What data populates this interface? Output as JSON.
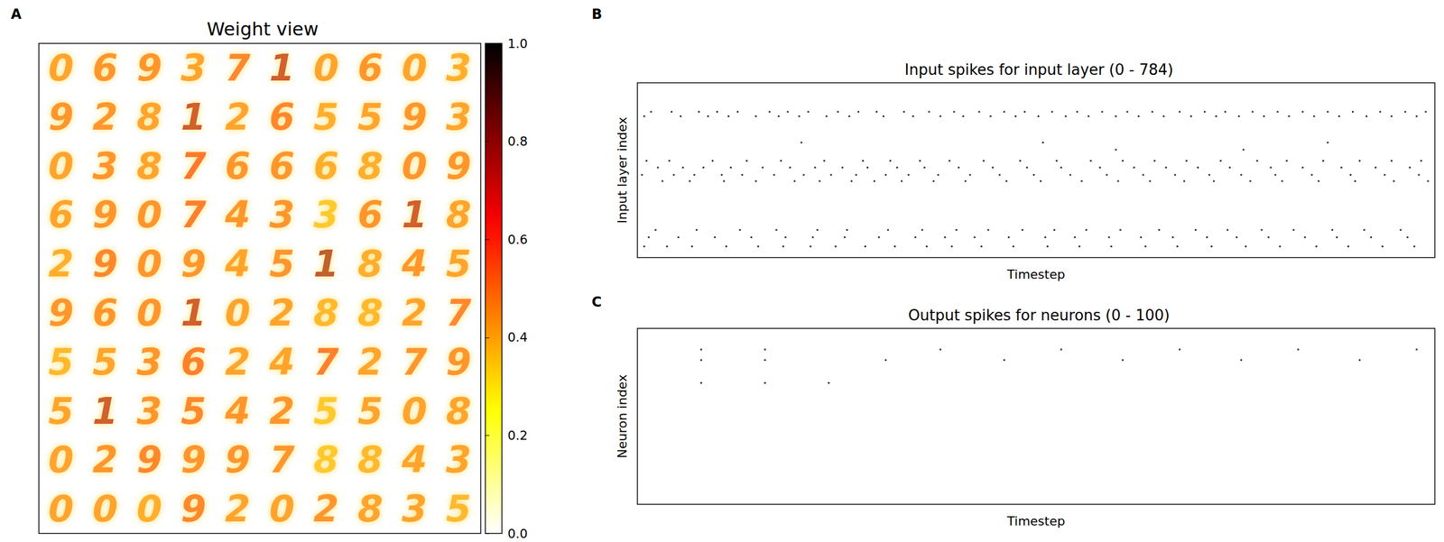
{
  "chart_data": [
    {
      "panel": "A",
      "type": "image_grid",
      "title": "Weight view",
      "tick_labels": false,
      "digits": [
        [
          "0",
          "6",
          "9",
          "3",
          "7",
          "1",
          "0",
          "6",
          "0",
          "3"
        ],
        [
          "9",
          "2",
          "8",
          "1",
          "2",
          "6",
          "5",
          "5",
          "9",
          "3"
        ],
        [
          "0",
          "3",
          "8",
          "7",
          "6",
          "6",
          "6",
          "8",
          "0",
          "9"
        ],
        [
          "6",
          "9",
          "0",
          "7",
          "4",
          "3",
          "3",
          "6",
          "1",
          "8"
        ],
        [
          "2",
          "9",
          "0",
          "9",
          "4",
          "5",
          "1",
          "8",
          "4",
          "5"
        ],
        [
          "9",
          "6",
          "0",
          "1",
          "0",
          "2",
          "8",
          "8",
          "2",
          "7"
        ],
        [
          "5",
          "5",
          "3",
          "6",
          "2",
          "4",
          "7",
          "2",
          "7",
          "9"
        ],
        [
          "5",
          "1",
          "3",
          "5",
          "4",
          "2",
          "5",
          "5",
          "0",
          "8"
        ],
        [
          "0",
          "2",
          "9",
          "9",
          "9",
          "7",
          "8",
          "8",
          "4",
          "3"
        ],
        [
          "0",
          "0",
          "0",
          "9",
          "2",
          "0",
          "2",
          "8",
          "3",
          "5"
        ]
      ],
      "intensity": [
        [
          0.42,
          0.45,
          0.45,
          0.42,
          0.48,
          0.72,
          0.42,
          0.45,
          0.42,
          0.4
        ],
        [
          0.45,
          0.45,
          0.42,
          0.72,
          0.42,
          0.48,
          0.4,
          0.42,
          0.45,
          0.42
        ],
        [
          0.42,
          0.45,
          0.42,
          0.52,
          0.45,
          0.45,
          0.4,
          0.4,
          0.45,
          0.45
        ],
        [
          0.42,
          0.45,
          0.45,
          0.5,
          0.45,
          0.45,
          0.35,
          0.45,
          0.72,
          0.42
        ],
        [
          0.4,
          0.48,
          0.45,
          0.45,
          0.42,
          0.45,
          0.75,
          0.4,
          0.45,
          0.42
        ],
        [
          0.45,
          0.45,
          0.45,
          0.72,
          0.42,
          0.42,
          0.38,
          0.38,
          0.42,
          0.48
        ],
        [
          0.38,
          0.42,
          0.45,
          0.5,
          0.42,
          0.42,
          0.5,
          0.42,
          0.45,
          0.45
        ],
        [
          0.42,
          0.72,
          0.45,
          0.48,
          0.45,
          0.45,
          0.35,
          0.42,
          0.42,
          0.42
        ],
        [
          0.42,
          0.45,
          0.48,
          0.45,
          0.45,
          0.45,
          0.35,
          0.38,
          0.42,
          0.42
        ],
        [
          0.42,
          0.42,
          0.4,
          0.48,
          0.42,
          0.42,
          0.45,
          0.42,
          0.42,
          0.38
        ]
      ],
      "colorbar": {
        "range": [
          0,
          1
        ],
        "ticks": [
          {
            "value": 0,
            "label": "0.0"
          },
          {
            "value": 0.2,
            "label": "0.2"
          },
          {
            "value": 0.4,
            "label": "0.4"
          },
          {
            "value": 0.6,
            "label": "0.6"
          },
          {
            "value": 0.8,
            "label": "0.8"
          },
          {
            "value": 1,
            "label": "1.0"
          }
        ]
      }
    },
    {
      "panel": "B",
      "type": "scatter",
      "title": "Input spikes for input layer (0 - 784)",
      "x_label": "Timestep",
      "y_label": "Input layer index",
      "xlim": [
        0,
        350
      ],
      "ylim": [
        784,
        0
      ],
      "tick_labels": false,
      "marker": "square",
      "color": "#000000",
      "spikes": [
        {
          "index": 130,
          "times": [
            6,
            15,
            27,
            35,
            44,
            58,
            66,
            75,
            88,
            97,
            105,
            117,
            128,
            139,
            150,
            161,
            170,
            182,
            193,
            204,
            215,
            226,
            238,
            249,
            258,
            270,
            281,
            292,
            303,
            314,
            326,
            337,
            346
          ]
        },
        {
          "index": 150,
          "times": [
            3,
            19,
            31,
            40,
            52,
            62,
            71,
            83,
            93,
            108,
            121,
            133,
            143,
            155,
            166,
            176,
            188,
            198,
            210,
            220,
            231,
            243,
            254,
            264,
            275,
            286,
            297,
            308,
            320,
            331,
            342
          ]
        },
        {
          "index": 268,
          "times": [
            72,
            178,
            303
          ]
        },
        {
          "index": 300,
          "times": [
            210,
            266
          ]
        },
        {
          "index": 350,
          "times": [
            4,
            14,
            33,
            48,
            63,
            82,
            99,
            111,
            124,
            137,
            152,
            168,
            184,
            199,
            213,
            227,
            241,
            256,
            272,
            285,
            301,
            317,
            331,
            344
          ]
        },
        {
          "index": 380,
          "times": [
            9,
            20,
            29,
            41,
            55,
            67,
            78,
            90,
            101,
            114,
            126,
            141,
            156,
            171,
            186,
            203,
            218,
            232,
            246,
            260,
            278,
            292,
            309,
            324,
            339
          ]
        },
        {
          "index": 413,
          "times": [
            2,
            16,
            25,
            37,
            46,
            60,
            73,
            85,
            96,
            109,
            119,
            132,
            146,
            159,
            174,
            190,
            206,
            222,
            236,
            251,
            265,
            280,
            296,
            313,
            328,
            343
          ]
        },
        {
          "index": 441,
          "times": [
            11,
            23,
            38,
            52,
            69,
            80,
            94,
            104,
            116,
            130,
            144,
            162,
            177,
            195,
            211,
            225,
            240,
            253,
            269,
            283,
            299,
            315,
            332,
            347
          ]
        },
        {
          "index": 660,
          "times": [
            8,
            26,
            45,
            61,
            79,
            92,
            110,
            125,
            140,
            154,
            169,
            183,
            197,
            212,
            229,
            245,
            259,
            274,
            288,
            305,
            319,
            335
          ]
        },
        {
          "index": 693,
          "times": [
            5,
            18,
            34,
            50,
            65,
            77,
            91,
            106,
            122,
            135,
            148,
            163,
            179,
            192,
            207,
            221,
            235,
            250,
            263,
            277,
            293,
            307,
            322,
            338
          ]
        },
        {
          "index": 734,
          "times": [
            3,
            13,
            24,
            39,
            53,
            64,
            76,
            87,
            100,
            113,
            127,
            138,
            151,
            165,
            180,
            194,
            208,
            223,
            237,
            252,
            267,
            282,
            298,
            312,
            327,
            341
          ]
        }
      ]
    },
    {
      "panel": "C",
      "type": "scatter",
      "title": "Output spikes for neurons (0 - 100)",
      "x_label": "Timestep",
      "y_label": "Neuron index",
      "xlim": [
        0,
        350
      ],
      "ylim": [
        100,
        0
      ],
      "tick_labels": false,
      "marker": "square",
      "color": "#000000",
      "spikes": [
        {
          "index": 12,
          "times": [
            28,
            56,
            133,
            186,
            238,
            290,
            342
          ]
        },
        {
          "index": 18,
          "times": [
            28,
            56,
            109,
            161,
            213,
            265,
            317
          ]
        },
        {
          "index": 31,
          "times": [
            28,
            56,
            84
          ]
        }
      ]
    }
  ]
}
